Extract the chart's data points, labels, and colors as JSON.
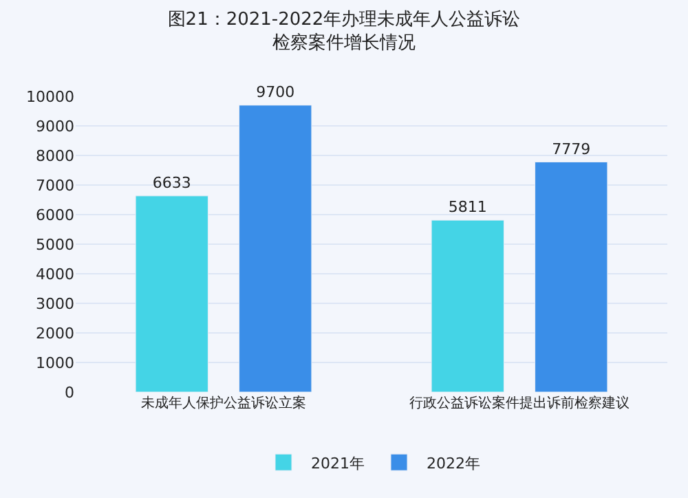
{
  "chart_data": {
    "type": "bar",
    "title": "图21：2021-2022年办理未成年人公益诉讼检察案件增长情况",
    "categories": [
      "未成年人保护公益诉讼立案",
      "行政公益诉讼案件提出诉前检察建议"
    ],
    "series": [
      {
        "name": "2021年",
        "color": "#44d4e6",
        "values": [
          6633,
          5811
        ]
      },
      {
        "name": "2022年",
        "color": "#3a8ee8",
        "values": [
          9700,
          7779
        ]
      }
    ],
    "ylim": [
      0,
      10000
    ],
    "yticks": [
      0,
      1000,
      2000,
      3000,
      4000,
      5000,
      6000,
      7000,
      8000,
      9000,
      10000
    ],
    "grid": "y",
    "legend": "bottom",
    "data_labels": true
  }
}
